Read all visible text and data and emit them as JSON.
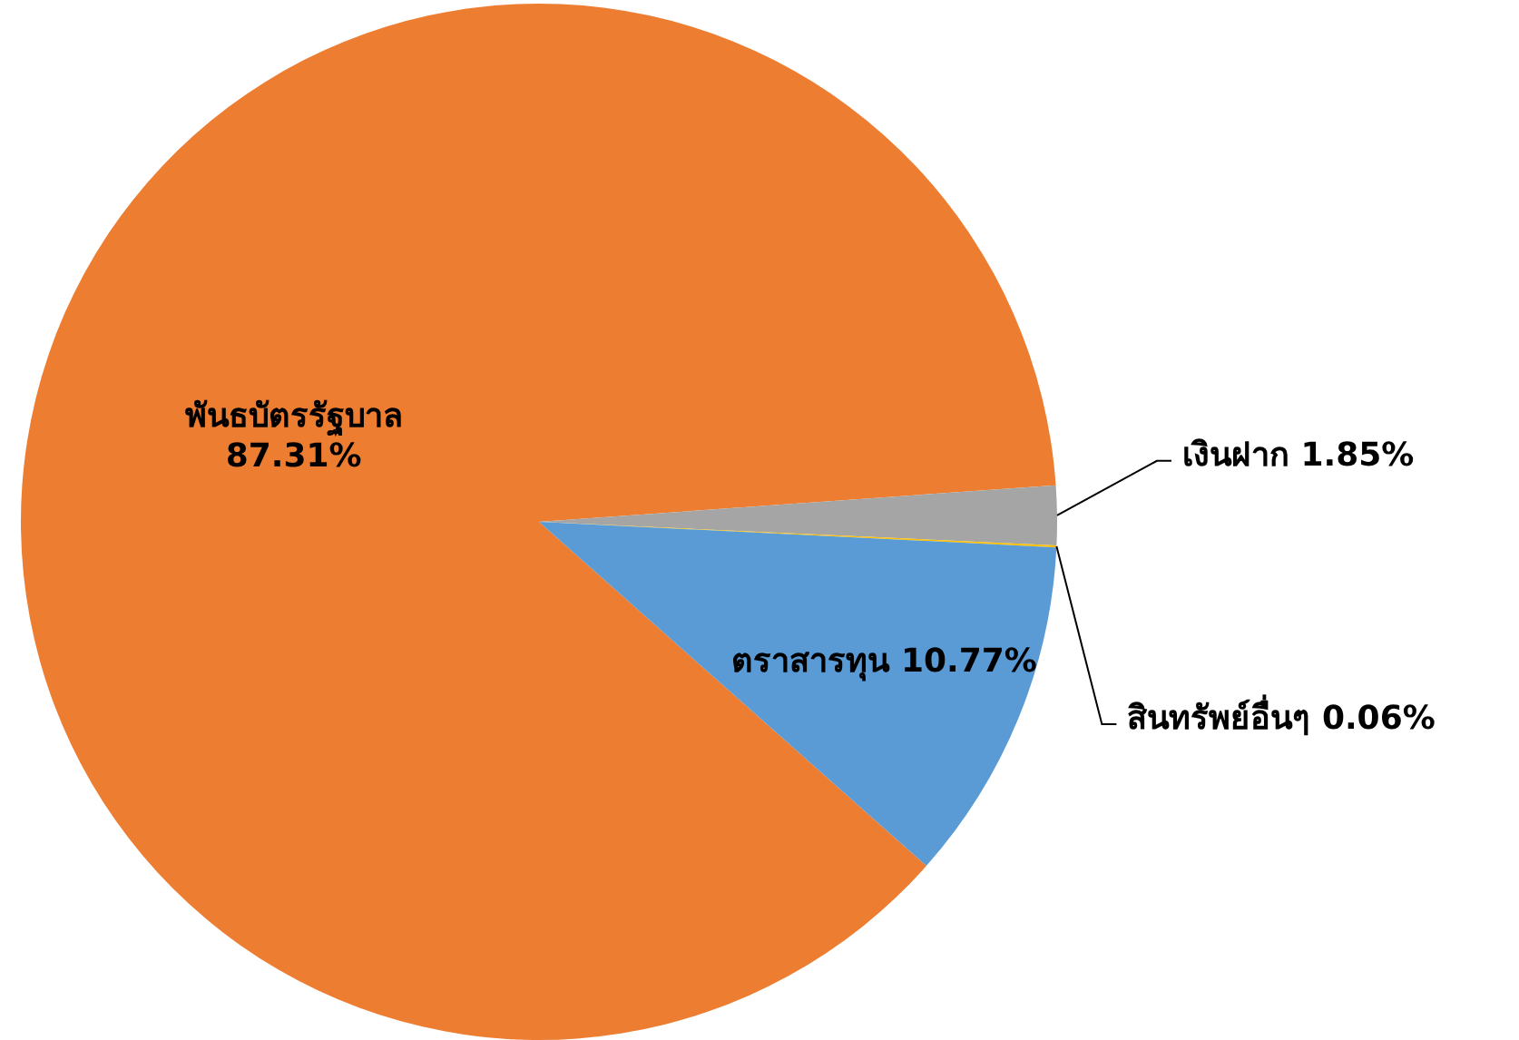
{
  "chart_data": {
    "type": "pie",
    "categories": [
      "พันธบัตรรัฐบาล",
      "เงินฝาก",
      "สินทรัพย์อื่นๆ",
      "ตราสารทุน"
    ],
    "values": [
      87.31,
      1.85,
      0.06,
      10.77
    ],
    "colors": [
      "#ed7d31",
      "#a5a5a5",
      "#ffc000",
      "#5b9bd5"
    ],
    "value_labels": [
      "87.31%",
      "1.85%",
      "0.06%",
      "10.77%"
    ],
    "legend": false
  }
}
